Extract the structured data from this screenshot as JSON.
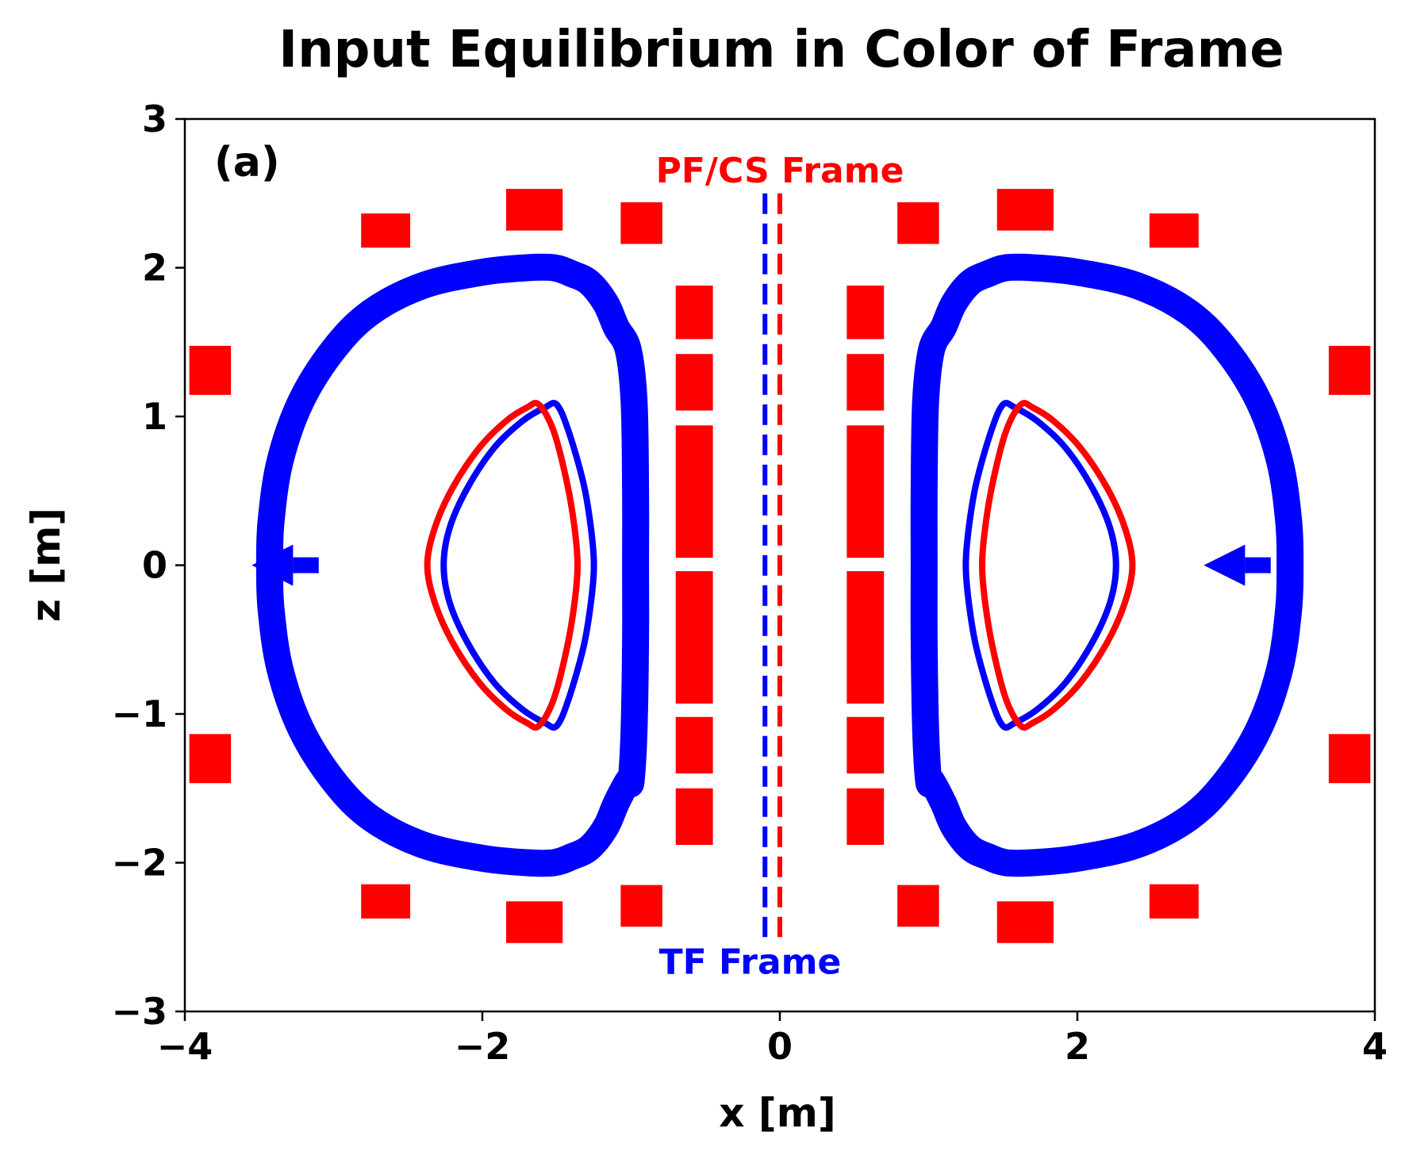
{
  "chart_data": {
    "type": "line",
    "title": "Input Equilibrium in Color of Frame",
    "xlabel": "x [m]",
    "ylabel": "z [m]",
    "xlim": [
      -4,
      4
    ],
    "ylim": [
      -3,
      3
    ],
    "xticks": [
      -4,
      -2,
      0,
      2,
      4
    ],
    "yticks": [
      -3,
      -2,
      -1,
      0,
      1,
      2,
      3
    ],
    "grid": false,
    "panel_label": "(a)",
    "colors": {
      "tf_frame": "#0000ff",
      "pf_cs_frame": "#ff0000",
      "axes": "#000000"
    },
    "annotations": [
      {
        "text": "PF/CS Frame",
        "color": "#ff0000",
        "x": 0.0,
        "y": 2.66
      },
      {
        "text": "TF Frame",
        "color": "#0000ff",
        "x": -0.2,
        "y": -2.66
      }
    ],
    "frame_axes": [
      {
        "color": "#0000ff",
        "x": -0.1,
        "y_range": [
          -2.5,
          2.5
        ],
        "style": "dashed"
      },
      {
        "color": "#ff0000",
        "x": 0.0,
        "y_range": [
          -2.5,
          2.5
        ],
        "style": "dashed"
      }
    ],
    "vacuum_vessel": {
      "color": "#0000ff",
      "points_right_half": [
        [
          1.02,
          1.45
        ],
        [
          1.1,
          1.6
        ],
        [
          1.17,
          1.76
        ],
        [
          1.28,
          1.9
        ],
        [
          1.4,
          1.96
        ],
        [
          1.52,
          2.0
        ],
        [
          1.7,
          2.0
        ],
        [
          2.0,
          1.97
        ],
        [
          2.4,
          1.88
        ],
        [
          2.75,
          1.7
        ],
        [
          3.0,
          1.45
        ],
        [
          3.22,
          1.1
        ],
        [
          3.36,
          0.7
        ],
        [
          3.42,
          0.3
        ],
        [
          3.43,
          0.0
        ]
      ]
    },
    "plasma_boundary": {
      "series": [
        {
          "color": "#0000ff",
          "points_right_half": [
            [
              1.5,
              1.08
            ],
            [
              1.58,
              1.06
            ],
            [
              1.73,
              0.97
            ],
            [
              1.92,
              0.79
            ],
            [
              2.1,
              0.52
            ],
            [
              2.22,
              0.25
            ],
            [
              2.26,
              0.0
            ],
            [
              2.22,
              -0.25
            ],
            [
              2.1,
              -0.52
            ],
            [
              1.92,
              -0.79
            ],
            [
              1.73,
              -0.97
            ],
            [
              1.58,
              -1.06
            ],
            [
              1.5,
              -1.08
            ],
            [
              1.42,
              -0.9
            ],
            [
              1.32,
              -0.55
            ],
            [
              1.27,
              -0.25
            ],
            [
              1.25,
              0.0
            ],
            [
              1.27,
              0.25
            ],
            [
              1.32,
              0.55
            ],
            [
              1.42,
              0.9
            ]
          ]
        },
        {
          "color": "#ff0000",
          "points_right_half": [
            [
              1.62,
              1.08
            ],
            [
              1.7,
              1.06
            ],
            [
              1.84,
              0.97
            ],
            [
              2.02,
              0.79
            ],
            [
              2.2,
              0.52
            ],
            [
              2.32,
              0.25
            ],
            [
              2.37,
              0.0
            ],
            [
              2.32,
              -0.25
            ],
            [
              2.2,
              -0.52
            ],
            [
              2.02,
              -0.79
            ],
            [
              1.84,
              -0.97
            ],
            [
              1.7,
              -1.06
            ],
            [
              1.62,
              -1.08
            ],
            [
              1.52,
              -0.9
            ],
            [
              1.43,
              -0.55
            ],
            [
              1.38,
              -0.25
            ],
            [
              1.36,
              0.0
            ],
            [
              1.38,
              0.25
            ],
            [
              1.43,
              0.55
            ],
            [
              1.52,
              0.9
            ]
          ]
        }
      ]
    },
    "coils": {
      "color": "#ff0000",
      "central_solenoid_x_range": [
        0.45,
        0.7
      ],
      "central_solenoid_segments": [
        [
          1.52,
          1.88
        ],
        [
          1.04,
          1.42
        ],
        [
          0.05,
          0.94
        ],
        [
          -0.93,
          -0.04
        ],
        [
          -1.4,
          -1.02
        ],
        [
          -1.88,
          -1.5
        ]
      ],
      "pf_coils_right_half": [
        {
          "x": 0.93,
          "z": 2.3,
          "w": 0.28,
          "h": 0.28
        },
        {
          "x": 1.65,
          "z": 2.39,
          "w": 0.38,
          "h": 0.28
        },
        {
          "x": 2.65,
          "z": 2.25,
          "w": 0.33,
          "h": 0.23
        },
        {
          "x": 3.83,
          "z": 1.31,
          "w": 0.28,
          "h": 0.33
        },
        {
          "x": 3.83,
          "z": -1.3,
          "w": 0.28,
          "h": 0.33
        },
        {
          "x": 2.65,
          "z": -2.26,
          "w": 0.33,
          "h": 0.23
        },
        {
          "x": 1.65,
          "z": -2.4,
          "w": 0.38,
          "h": 0.28
        },
        {
          "x": 0.93,
          "z": -2.29,
          "w": 0.28,
          "h": 0.28
        }
      ]
    },
    "arrows": [
      {
        "color": "#0000ff",
        "from": [
          -3.1,
          0.0
        ],
        "to": [
          -3.55,
          0.0
        ]
      },
      {
        "color": "#0000ff",
        "from": [
          3.3,
          0.0
        ],
        "to": [
          2.85,
          0.0
        ]
      }
    ]
  }
}
